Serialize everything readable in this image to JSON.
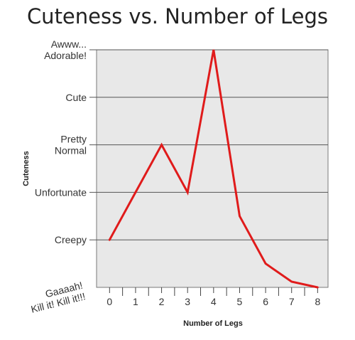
{
  "chart_data": {
    "type": "line",
    "title": "Cuteness vs. Number of Legs",
    "xlabel": "Number of Legs",
    "ylabel": "Cuteness",
    "x": [
      0,
      1,
      2,
      3,
      4,
      5,
      6,
      7,
      8
    ],
    "xlim": [
      -0.5,
      8.4
    ],
    "ylim": [
      0,
      5
    ],
    "yticks": [
      {
        "value": 5,
        "label": [
          "Awww...",
          "Adorable!"
        ]
      },
      {
        "value": 4,
        "label": [
          "Cute"
        ]
      },
      {
        "value": 3,
        "label": [
          "Pretty",
          "Normal"
        ]
      },
      {
        "value": 2,
        "label": [
          "Unfortunate"
        ]
      },
      {
        "value": 1,
        "label": [
          "Creepy"
        ]
      },
      {
        "value": 0,
        "label": [
          "Gaaaah!",
          "Kill it! Kill it!!!"
        ]
      }
    ],
    "series": [
      {
        "values": [
          1.0,
          2.0,
          3.0,
          2.0,
          5.0,
          1.5,
          0.5,
          0.12,
          0.0
        ],
        "color": "#e01b1b"
      }
    ],
    "grid": true,
    "plot_background": "#e8e8e8"
  }
}
